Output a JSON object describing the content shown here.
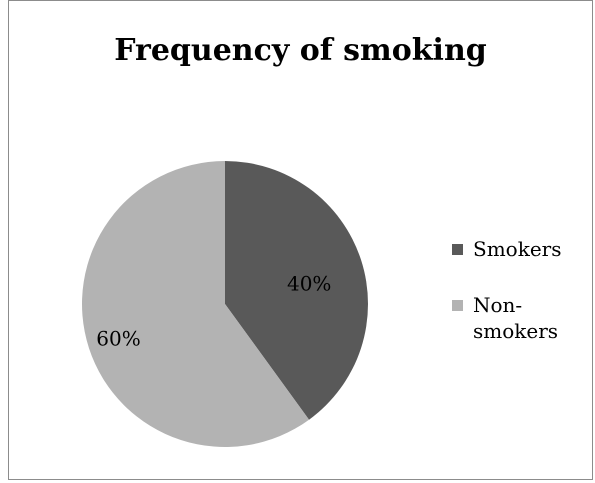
{
  "chart_data": {
    "type": "pie",
    "title": "Frequency of smoking",
    "categories": [
      "Smokers",
      "Non-smokers"
    ],
    "legend_labels": [
      "Smokers",
      "Non-\nsmokers"
    ],
    "values": [
      40,
      60
    ],
    "data_labels": [
      "40%",
      "60%"
    ],
    "colors": [
      "#595959",
      "#b3b3b3"
    ],
    "legend_position": "right"
  }
}
